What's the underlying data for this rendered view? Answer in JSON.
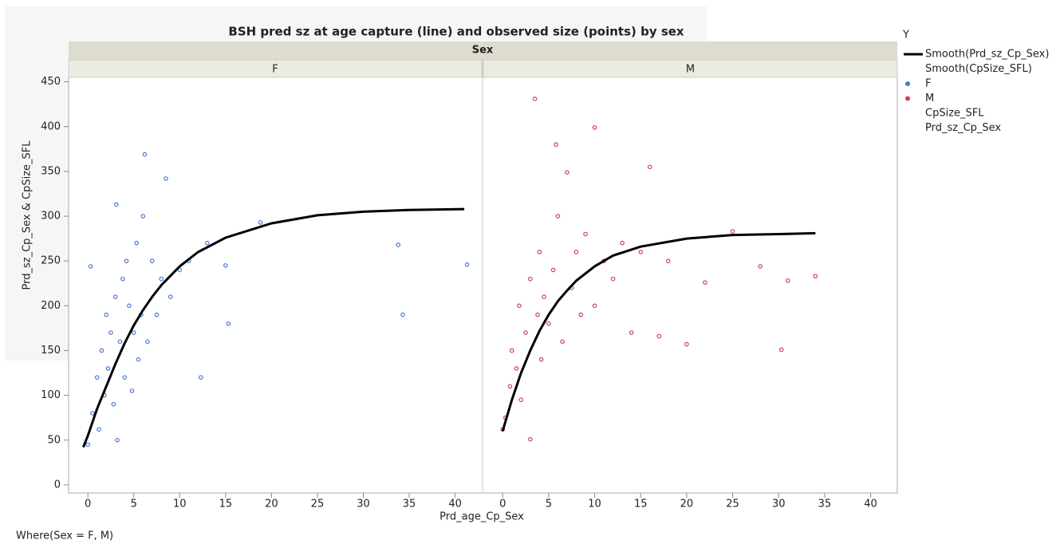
{
  "chart_data": {
    "type": "scatter",
    "title": "BSH pred sz at age capture (line) and observed size (points) by sex",
    "facet_label": "Sex",
    "xlabel": "Prd_age_Cp_Sex",
    "ylabel": "Prd_sz_Cp_Sex & CpSize_SFL",
    "xlim": [
      -2.1,
      42.9
    ],
    "ylim": [
      -9,
      455
    ],
    "xticks": [
      0,
      5,
      10,
      15,
      20,
      25,
      30,
      35,
      40
    ],
    "yticks": [
      0,
      50,
      100,
      150,
      200,
      250,
      300,
      350,
      400,
      450
    ],
    "panels": [
      {
        "label": "F",
        "points": {
          "color": "#4a78d8",
          "x": [
            0,
            0.3,
            0.5,
            1,
            1.2,
            1.5,
            1.8,
            2,
            2.2,
            2.5,
            2.8,
            3,
            3.1,
            3.2,
            3.5,
            3.8,
            4,
            4.2,
            4.5,
            4.8,
            5,
            5.3,
            5.5,
            5.8,
            6,
            6.2,
            6.5,
            7,
            7.5,
            8,
            8.5,
            9,
            10,
            11,
            12.3,
            13,
            15,
            18.8,
            34.3,
            41.3,
            33.8,
            15.3
          ],
          "y": [
            45,
            244,
            80,
            120,
            62,
            150,
            100,
            190,
            130,
            170,
            90,
            210,
            313,
            50,
            160,
            230,
            120,
            250,
            200,
            105,
            170,
            270,
            140,
            190,
            300,
            369,
            160,
            250,
            190,
            230,
            342,
            210,
            240,
            250,
            120,
            270,
            245,
            293,
            190,
            246,
            268,
            180
          ]
        },
        "smooth": {
          "color": "#000000",
          "x": [
            -0.5,
            0,
            1,
            2,
            3,
            4,
            5,
            6,
            7,
            8,
            10,
            12,
            15,
            20,
            25,
            30,
            35,
            41
          ],
          "y": [
            42,
            55,
            85,
            110,
            135,
            158,
            178,
            195,
            210,
            223,
            244,
            260,
            276,
            292,
            301,
            305,
            307,
            308
          ]
        }
      },
      {
        "label": "M",
        "points": {
          "color": "#d0414f",
          "x": [
            0,
            0.3,
            0.8,
            1,
            1.5,
            1.8,
            2,
            2.5,
            3,
            3,
            3.5,
            3.8,
            4,
            4.2,
            4.5,
            5,
            5.5,
            5.8,
            6,
            6.5,
            7,
            7.5,
            8,
            8.5,
            9,
            10,
            10,
            11,
            12,
            13,
            14,
            15,
            16,
            17,
            18,
            20,
            22,
            25,
            28,
            30.3,
            31,
            34
          ],
          "y": [
            62,
            75,
            110,
            150,
            130,
            200,
            95,
            170,
            230,
            51,
            431,
            190,
            260,
            140,
            210,
            180,
            240,
            380,
            300,
            160,
            349,
            220,
            260,
            190,
            280,
            399,
            200,
            250,
            230,
            270,
            170,
            260,
            355,
            166,
            250,
            157,
            226,
            283,
            244,
            151,
            228,
            233
          ]
        },
        "smooth": {
          "color": "#000000",
          "x": [
            0,
            1,
            2,
            3,
            4,
            5,
            6,
            7,
            8,
            10,
            12,
            15,
            20,
            25,
            30,
            34
          ],
          "y": [
            60,
            95,
            125,
            150,
            172,
            190,
            205,
            217,
            228,
            244,
            256,
            266,
            275,
            279,
            280,
            281
          ]
        }
      }
    ],
    "legend": {
      "title": "Y",
      "entries": [
        {
          "name": "Smooth(Prd_sz_Cp_Sex)",
          "marker": "line",
          "color": "#000000"
        },
        {
          "name": "Smooth(CpSize_SFL)"
        },
        {
          "name": "F",
          "marker": "dot",
          "color": "#4a78d8"
        },
        {
          "name": "M",
          "marker": "dot",
          "color": "#d0414f"
        },
        {
          "name": "CpSize_SFL"
        },
        {
          "name": "Prd_sz_Cp_Sex"
        }
      ]
    },
    "footnote": "Where(Sex = F, M)"
  }
}
